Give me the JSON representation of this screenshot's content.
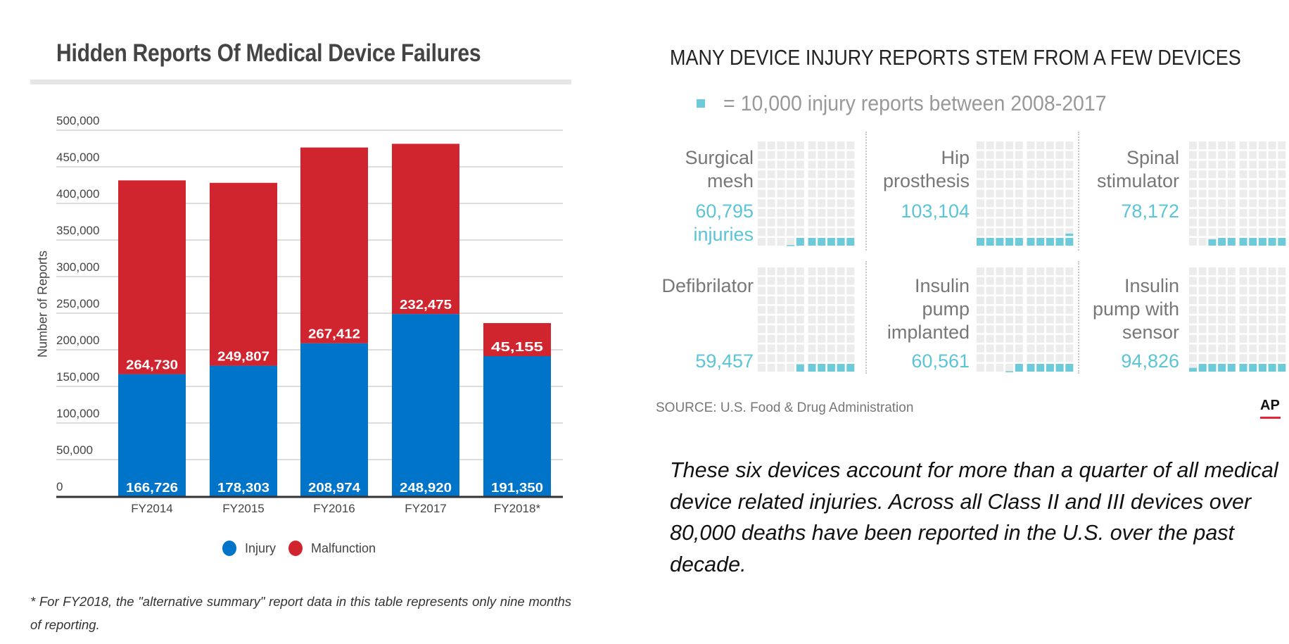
{
  "left": {
    "title": "Hidden Reports Of Medical Device Failures",
    "footnote": "* For FY2018, the \"alternative summary\" report data in this table represents only nine months of reporting."
  },
  "right": {
    "title": "MANY DEVICE INJURY REPORTS STEM FROM A FEW DEVICES",
    "key_text": "= 10,000 injury reports between 2008-2017",
    "source": "SOURCE: U.S. Food & Drug Administration",
    "logo": "AP",
    "paragraph": "These six devices account for more than a quarter of all medical device related injuries. Across all Class II and III devices over 80,000 deaths have been reported in the U.S. over the past decade."
  },
  "colors": {
    "injury": "#0074c8",
    "malfunction": "#d0252f",
    "waffle_fill": "#6ccad9",
    "waffle_empty": "#ececec"
  },
  "chart_data": [
    {
      "type": "bar",
      "stacked": true,
      "title": "Hidden Reports Of Medical Device Failures",
      "xlabel": "",
      "ylabel": "Number of Reports",
      "ylim": [
        0,
        500000
      ],
      "yticks": [
        "0",
        "50,000",
        "100,000",
        "150,000",
        "200,000",
        "250,000",
        "300,000",
        "350,000",
        "400,000",
        "450,000",
        "500,000"
      ],
      "grid": true,
      "legend": "bottom-center",
      "categories": [
        "FY2014",
        "FY2015",
        "FY2016",
        "FY2017",
        "FY2018*"
      ],
      "series": [
        {
          "name": "Injury",
          "values": [
            166726,
            178303,
            208974,
            248920,
            191350
          ],
          "labels": [
            "166,726",
            "178,303",
            "208,974",
            "248,920",
            "191,350"
          ]
        },
        {
          "name": "Malfunction",
          "values": [
            264730,
            249807,
            267412,
            232475,
            45155
          ],
          "labels": [
            "264,730",
            "249,807",
            "267,412",
            "232,475",
            "45,155"
          ]
        }
      ]
    },
    {
      "type": "waffle",
      "title": "MANY DEVICE INJURY REPORTS STEM FROM A FEW DEVICES",
      "unit": 10000,
      "unit_label": "= 10,000 injury reports between 2008-2017",
      "devices": [
        {
          "lines": [
            "Surgical",
            "mesh"
          ],
          "value": 60795,
          "value_label": "60,795",
          "suffix": "injuries"
        },
        {
          "lines": [
            "Hip",
            "prosthesis"
          ],
          "value": 103104,
          "value_label": "103,104"
        },
        {
          "lines": [
            "Spinal",
            "stimulator"
          ],
          "value": 78172,
          "value_label": "78,172"
        },
        {
          "lines": [
            "Defibrilator"
          ],
          "value": 59457,
          "value_label": "59,457"
        },
        {
          "lines": [
            "Insulin",
            "pump",
            "implanted"
          ],
          "value": 60561,
          "value_label": "60,561"
        },
        {
          "lines": [
            "Insulin",
            "pump with",
            "sensor"
          ],
          "value": 94826,
          "value_label": "94,826"
        }
      ]
    }
  ]
}
